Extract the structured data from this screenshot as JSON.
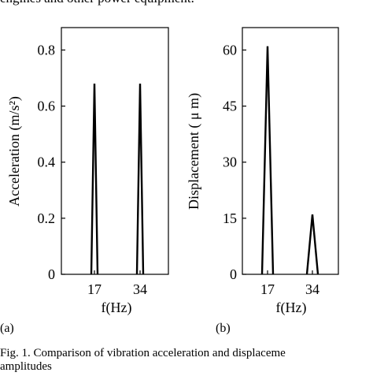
{
  "header_fragment": "engines and other power equipment.",
  "caption_line1": "Fig. 1. Comparison of vibration acceleration and displaceme",
  "caption_line2": "amplitudes",
  "chart_data": [
    {
      "type": "line",
      "panel_label": "(a)",
      "xlabel": "f(Hz)",
      "ylabel": "Acceleration (m/s²)",
      "x_ticks": [
        "17",
        "34"
      ],
      "y_ticks": [
        0,
        0.2,
        0.4,
        0.6,
        0.8
      ],
      "y_tick_labels": [
        "0",
        "0.2",
        "0.4",
        "0.6",
        "0.8"
      ],
      "ylim": [
        0,
        0.88
      ],
      "peaks": [
        {
          "x": "17",
          "y": 0.68
        },
        {
          "x": "34",
          "y": 0.68
        }
      ]
    },
    {
      "type": "line",
      "panel_label": "(b)",
      "xlabel": "f(Hz)",
      "ylabel": "Displacement ( μ m)",
      "x_ticks": [
        "17",
        "34"
      ],
      "y_ticks": [
        0,
        15,
        30,
        45,
        60
      ],
      "y_tick_labels": [
        "0",
        "15",
        "30",
        "45",
        "60"
      ],
      "ylim": [
        0,
        66
      ],
      "peaks": [
        {
          "x": "17",
          "y": 61
        },
        {
          "x": "34",
          "y": 16
        }
      ]
    }
  ]
}
